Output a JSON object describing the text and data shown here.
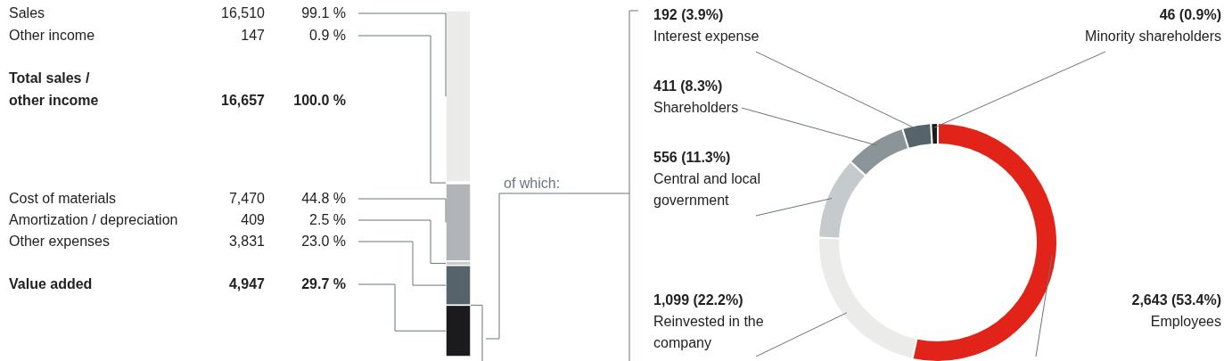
{
  "chart_data": [
    {
      "type": "other",
      "value_labels": [
        "16,510",
        "147",
        "7,470",
        "409",
        "3,831",
        "4,947"
      ],
      "categories": [
        "Sales",
        "Other income",
        "Cost of materials",
        "Amortization / depreciation",
        "Other expenses",
        "Value added"
      ],
      "values": [
        16510,
        147,
        7470,
        409,
        3831,
        4947
      ],
      "colors": [
        "#ebecea",
        "#f4f4f4",
        "#b1b5b8",
        "#c8cbcd",
        "#56636a",
        "#1b1a1c"
      ],
      "annotations": [
        "Total sales / other income",
        "16,657",
        "100.0 %",
        "of which:",
        "99.1 %",
        "0.9 %",
        "44.8 %",
        "2.5 %",
        "23.0 %",
        "29.7 %"
      ]
    },
    {
      "type": "donut",
      "categories": [
        "Employees",
        "Reinvested in the company",
        "Central and local government",
        "Shareholders",
        "Interest expense",
        "Minority shareholders"
      ],
      "values": [
        2643,
        1099,
        556,
        411,
        192,
        46
      ],
      "value_labels": [
        "2,643 (53.4%)",
        "1,099 (22.2%)",
        "556 (11.3%)",
        "411 (8.3%)",
        "192 (3.9%)",
        "46 (0.9%)"
      ],
      "colors": [
        "#e2231a",
        "#ebecea",
        "#c5cacd",
        "#8a9499",
        "#56636a",
        "#1b1a1c"
      ]
    }
  ]
}
